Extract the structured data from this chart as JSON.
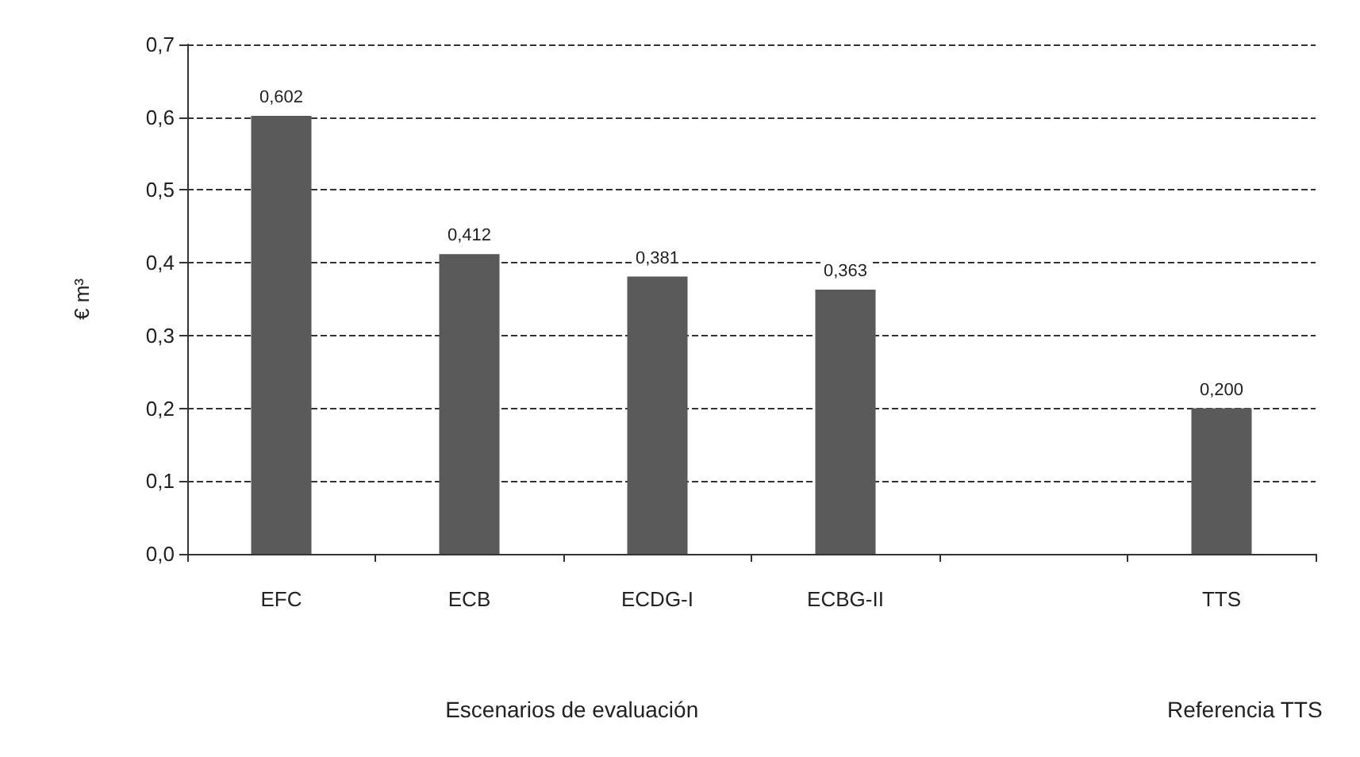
{
  "chart_data": {
    "type": "bar",
    "ylabel": "€ m³",
    "categories": [
      "EFC",
      "ECB",
      "ECDG-I",
      "ECBG-II",
      null,
      "TTS"
    ],
    "values": [
      0.602,
      0.412,
      0.381,
      0.363,
      null,
      0.2
    ],
    "value_labels": [
      "0,602",
      "0,412",
      "0,381",
      "0,363",
      null,
      "0,200"
    ],
    "color": "#5a5a5a",
    "ylim": [
      0,
      0.7
    ],
    "yticks": [
      {
        "value": 0,
        "label": "0,0"
      },
      {
        "value": 0.1,
        "label": "0,1"
      },
      {
        "value": 0.2,
        "label": "0,2"
      },
      {
        "value": 0.3,
        "label": "0,3"
      },
      {
        "value": 0.4,
        "label": "0,4"
      },
      {
        "value": 0.5,
        "label": "0,5"
      },
      {
        "value": 0.6,
        "label": "0,6"
      },
      {
        "value": 0.7,
        "label": "0,7"
      }
    ],
    "grid": "y",
    "line_style": "dashed",
    "annotations": [
      "Escenarios de evaluación",
      "Referencia TTS"
    ]
  }
}
